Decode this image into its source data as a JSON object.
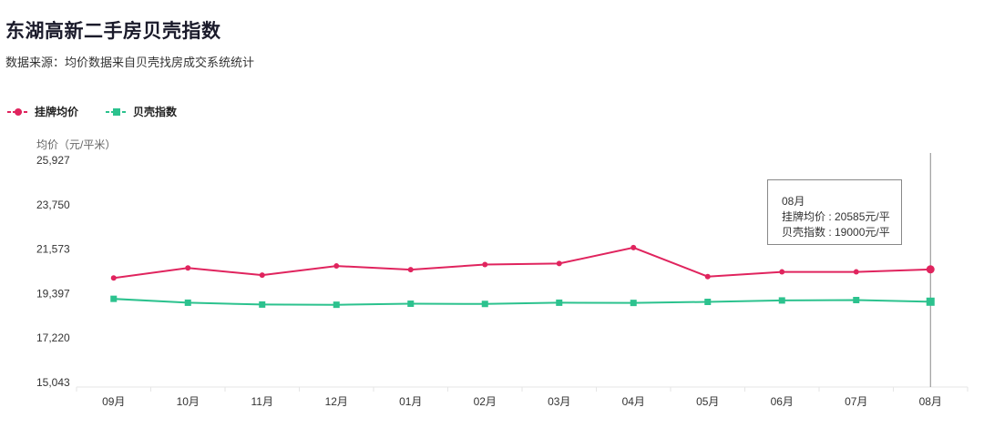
{
  "header": {
    "title": "东湖高新二手房贝壳指数",
    "subtitle": "数据来源：均价数据来自贝壳找房成交系统统计"
  },
  "legend": [
    {
      "label": "挂牌均价",
      "color": "#e0245e"
    },
    {
      "label": "贝壳指数",
      "color": "#2cc28e"
    }
  ],
  "y_unit": "均价（元/平米）",
  "tooltip": {
    "month": "08月",
    "line1": "挂牌均价 : 20585元/平",
    "line2": "贝壳指数 : 19000元/平"
  },
  "chart_data": {
    "type": "line",
    "categories": [
      "09月",
      "10月",
      "11月",
      "12月",
      "01月",
      "02月",
      "03月",
      "04月",
      "05月",
      "06月",
      "07月",
      "08月"
    ],
    "series": [
      {
        "name": "挂牌均价",
        "color": "#e0245e",
        "marker": "circle",
        "values": [
          20160,
          20650,
          20300,
          20750,
          20570,
          20820,
          20870,
          21650,
          20230,
          20460,
          20460,
          20585
        ]
      },
      {
        "name": "贝壳指数",
        "color": "#2cc28e",
        "marker": "square",
        "values": [
          19140,
          18950,
          18860,
          18850,
          18900,
          18890,
          18950,
          18940,
          18990,
          19060,
          19080,
          19000
        ]
      }
    ],
    "yticks": [
      "25,927",
      "23,750",
      "21,573",
      "19,397",
      "17,220",
      "15,043"
    ],
    "ylim": [
      15043,
      25927
    ],
    "highlight_category": "08月",
    "grid": false,
    "legend_position": "top-left"
  }
}
